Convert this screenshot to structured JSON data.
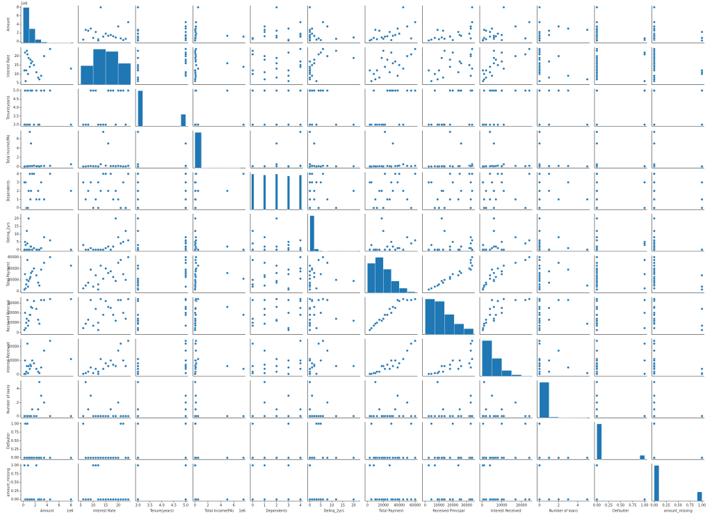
{
  "chart_data": {
    "type": "pairplot",
    "color": "#1f77b4",
    "variables": [
      {
        "name": "Amount",
        "lim": [
          -400000,
          8400000
        ],
        "offset": "1e6",
        "ticks": [
          0,
          {
            "value": 2000000,
            "label": "2"
          },
          {
            "value": 4000000,
            "label": "4"
          },
          {
            "value": 6000000,
            "label": "6"
          },
          {
            "value": 8000000,
            "label": "8"
          }
        ],
        "bins": [
          0,
          1000000,
          2000000,
          3000000,
          4000000,
          5000000,
          6000000,
          7000000,
          8000000
        ],
        "counts": [
          30000,
          12000,
          3000,
          800,
          200,
          50,
          10,
          5
        ]
      },
      {
        "name": "Interest Rate",
        "lim": [
          4,
          25
        ],
        "ticks": [
          5,
          10,
          15,
          20
        ],
        "bins": [
          5,
          10,
          15,
          20,
          25
        ],
        "counts": [
          8000,
          15000,
          14000,
          9000
        ]
      },
      {
        "name": "Tenure(years)",
        "lim": [
          2.9,
          5.1
        ],
        "ticks": [
          {
            "value": 3,
            "label": "3.0"
          },
          3.5,
          {
            "value": 4,
            "label": "4.0"
          },
          4.5,
          {
            "value": 5,
            "label": "5.0"
          }
        ],
        "bins": [
          3,
          3.2,
          3.4,
          3.6,
          3.8,
          4,
          4.2,
          4.4,
          4.6,
          4.8,
          5
        ],
        "counts": [
          65000,
          0,
          0,
          0,
          0,
          0,
          0,
          0,
          0,
          22000
        ]
      },
      {
        "name": "Total Income(PA)",
        "lim": [
          -300000,
          7800000
        ],
        "offset": "1e6",
        "ticks": [
          0,
          {
            "value": 2000000,
            "label": "2"
          },
          {
            "value": 4000000,
            "label": "4"
          },
          {
            "value": 6000000,
            "label": "6"
          }
        ],
        "bins": [
          0,
          1000000,
          2000000,
          3000000,
          4000000,
          5000000,
          6000000,
          7000000
        ],
        "counts": [
          80000,
          500,
          50,
          10,
          5,
          3,
          2
        ]
      },
      {
        "name": "Dependents",
        "lim": [
          -0.2,
          4.2
        ],
        "ticks": [
          0,
          1,
          2,
          3,
          4
        ],
        "bins": [
          -0.1,
          0.1,
          0.9,
          1.1,
          1.9,
          2.1,
          2.9,
          3.1,
          3.9,
          4.1
        ],
        "counts": [
          18000,
          0,
          17500,
          0,
          18000,
          0,
          17000,
          0,
          17500
        ]
      },
      {
        "name": "Delinq_2yrs",
        "lim": [
          -1,
          23
        ],
        "ticks": [
          0,
          5,
          10,
          15,
          20
        ],
        "bins": [
          0,
          2,
          4,
          6,
          8,
          10,
          12,
          14,
          16,
          18,
          20,
          22
        ],
        "counts": [
          80000,
          5000,
          1000,
          300,
          100,
          50,
          20,
          10,
          5,
          3,
          2
        ]
      },
      {
        "name": "Total Payment",
        "lim": [
          -3000,
          63000
        ],
        "ticks": [
          0,
          20000,
          40000,
          60000
        ],
        "bins": [
          0,
          10000,
          20000,
          30000,
          40000,
          50000,
          60000
        ],
        "counts": [
          25000,
          30000,
          20000,
          10000,
          4000,
          1000
        ]
      },
      {
        "name": "Received Principal",
        "lim": [
          -2000,
          36000
        ],
        "ticks": [
          0,
          10000,
          20000,
          30000
        ],
        "bins": [
          0,
          7000,
          14000,
          21000,
          28000,
          35000
        ],
        "counts": [
          30000,
          28000,
          17000,
          9000,
          5000
        ]
      },
      {
        "name": "Interest Received",
        "lim": [
          -1200,
          25500
        ],
        "ticks": [
          0,
          10000,
          20000
        ],
        "bins": [
          0,
          5000,
          10000,
          15000,
          20000,
          25000
        ],
        "counts": [
          50000,
          25000,
          8000,
          2000,
          500
        ]
      },
      {
        "name": "Number of loans",
        "lim": [
          -0.25,
          5.25
        ],
        "ticks": [
          0,
          2,
          4
        ],
        "bins": [
          0,
          1,
          2,
          3,
          4,
          5
        ],
        "counts": [
          85000,
          2000,
          500,
          100,
          20
        ]
      },
      {
        "name": "Defaulter",
        "lim": [
          -0.05,
          1.05
        ],
        "ticks": [
          {
            "value": 0,
            "label": "0.00"
          },
          0.25,
          {
            "value": 0.5,
            "label": "0.50"
          },
          0.75,
          {
            "value": 1,
            "label": "1.00"
          }
        ],
        "bins": [
          0,
          0.1,
          0.2,
          0.3,
          0.4,
          0.5,
          0.6,
          0.7,
          0.8,
          0.9,
          1
        ],
        "counts": [
          78000,
          0,
          0,
          0,
          0,
          0,
          0,
          0,
          0,
          9000
        ]
      },
      {
        "name": "amount_missing",
        "lim": [
          -0.05,
          1.05
        ],
        "ticks": [
          {
            "value": 0,
            "label": "0.00"
          },
          0.25,
          {
            "value": 0.5,
            "label": "0.50"
          },
          0.75,
          {
            "value": 1,
            "label": "1.00"
          }
        ],
        "bins": [
          0,
          0.1,
          0.2,
          0.3,
          0.4,
          0.5,
          0.6,
          0.7,
          0.8,
          0.9,
          1
        ],
        "counts": [
          70000,
          0,
          0,
          0,
          0,
          0,
          0,
          0,
          0,
          18000
        ]
      }
    ],
    "observations": [
      [
        500000,
        12,
        3,
        60000,
        0,
        0,
        12000,
        10000,
        2000,
        0,
        0,
        0
      ],
      [
        1200000,
        18,
        5,
        120000,
        1,
        2,
        25000,
        18000,
        7000,
        0,
        0,
        0
      ],
      [
        2500000,
        8,
        3,
        90000,
        2,
        0,
        15000,
        13000,
        2000,
        1,
        0,
        0
      ],
      [
        300000,
        22,
        5,
        40000,
        3,
        5,
        30000,
        20000,
        10000,
        0,
        1,
        0
      ],
      [
        1800000,
        15,
        3,
        200000,
        4,
        1,
        40000,
        32000,
        8000,
        0,
        0,
        0
      ],
      [
        800000,
        10,
        5,
        75000,
        0,
        0,
        8000,
        7000,
        1000,
        0,
        0,
        1
      ],
      [
        3500000,
        20,
        5,
        150000,
        1,
        8,
        50000,
        33000,
        17000,
        2,
        0,
        0
      ],
      [
        8000000,
        13,
        3,
        500000,
        2,
        0,
        45000,
        34000,
        11000,
        0,
        0,
        0
      ],
      [
        400000,
        6,
        3,
        30000,
        3,
        3,
        5000,
        4500,
        500,
        0,
        1,
        0
      ],
      [
        1500000,
        17,
        5,
        110000,
        4,
        0,
        35000,
        25000,
        10000,
        1,
        0,
        0
      ],
      [
        600000,
        23,
        3,
        55000,
        0,
        12,
        20000,
        14000,
        6000,
        0,
        0,
        0
      ],
      [
        2200000,
        11,
        5,
        80000,
        1,
        0,
        28000,
        24000,
        4000,
        0,
        0,
        1
      ],
      [
        900000,
        19,
        3,
        65000,
        2,
        20,
        18000,
        12000,
        6000,
        0,
        0,
        0
      ],
      [
        3000000,
        9,
        5,
        130000,
        3,
        1,
        38000,
        33000,
        5000,
        3,
        0,
        0
      ],
      [
        1100000,
        14,
        3,
        7500000,
        4,
        0,
        22000,
        18000,
        4000,
        0,
        0,
        0
      ],
      [
        700000,
        21,
        5,
        95000,
        0,
        4,
        55000,
        33000,
        22000,
        0,
        1,
        0
      ],
      [
        2700000,
        7,
        3,
        45000,
        1,
        0,
        10000,
        9000,
        1000,
        5,
        0,
        0
      ],
      [
        1300000,
        16,
        5,
        5000000,
        2,
        2,
        32000,
        26000,
        6000,
        0,
        0,
        0
      ],
      [
        200000,
        12,
        3,
        25000,
        3,
        0,
        3000,
        2600,
        400,
        0,
        0,
        1
      ],
      [
        4500000,
        24,
        5,
        170000,
        4,
        6,
        60000,
        34000,
        24000,
        0,
        0,
        0
      ]
    ]
  }
}
